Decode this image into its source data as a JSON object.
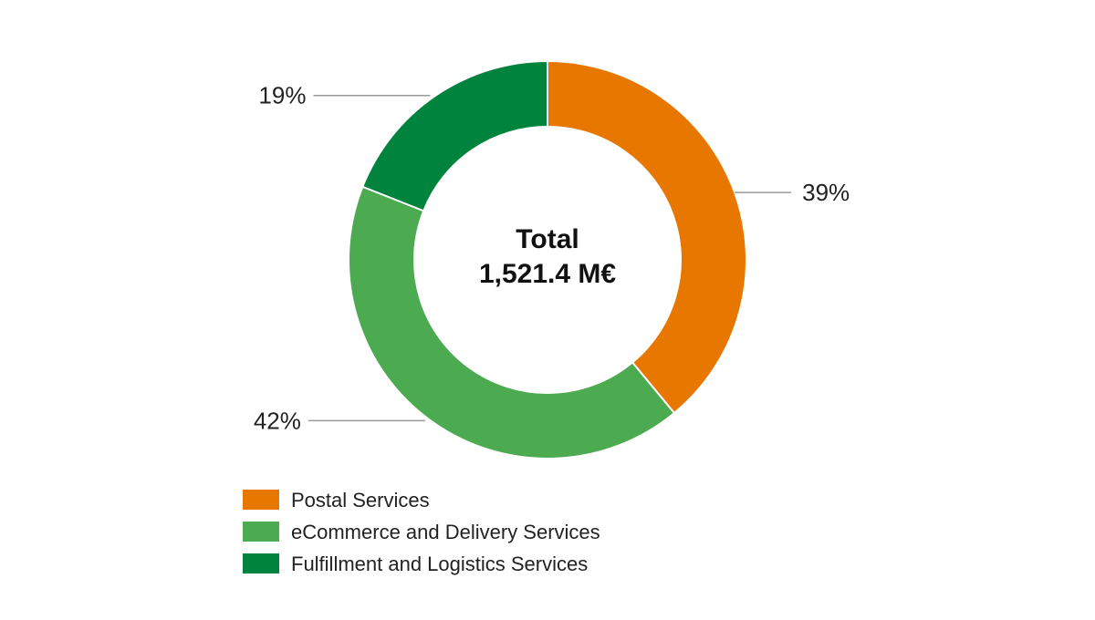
{
  "chart_data": {
    "type": "pie",
    "variant": "donut",
    "center_label": {
      "title": "Total",
      "value": "1,521.4 M€"
    },
    "slices": [
      {
        "name": "Postal Services",
        "value": 39,
        "label": "39%",
        "color": "#E87700"
      },
      {
        "name": "eCommerce and Delivery Services",
        "value": 42,
        "label": "42%",
        "color": "#4CAA50"
      },
      {
        "name": "Fulfillment and Logistics Services",
        "value": 19,
        "label": "19%",
        "color": "#00843D"
      }
    ],
    "legend": {
      "placement": "bottom-left",
      "entries": [
        "Postal Services",
        "eCommerce and Delivery Services",
        "Fulfillment and Logistics Services"
      ]
    }
  }
}
